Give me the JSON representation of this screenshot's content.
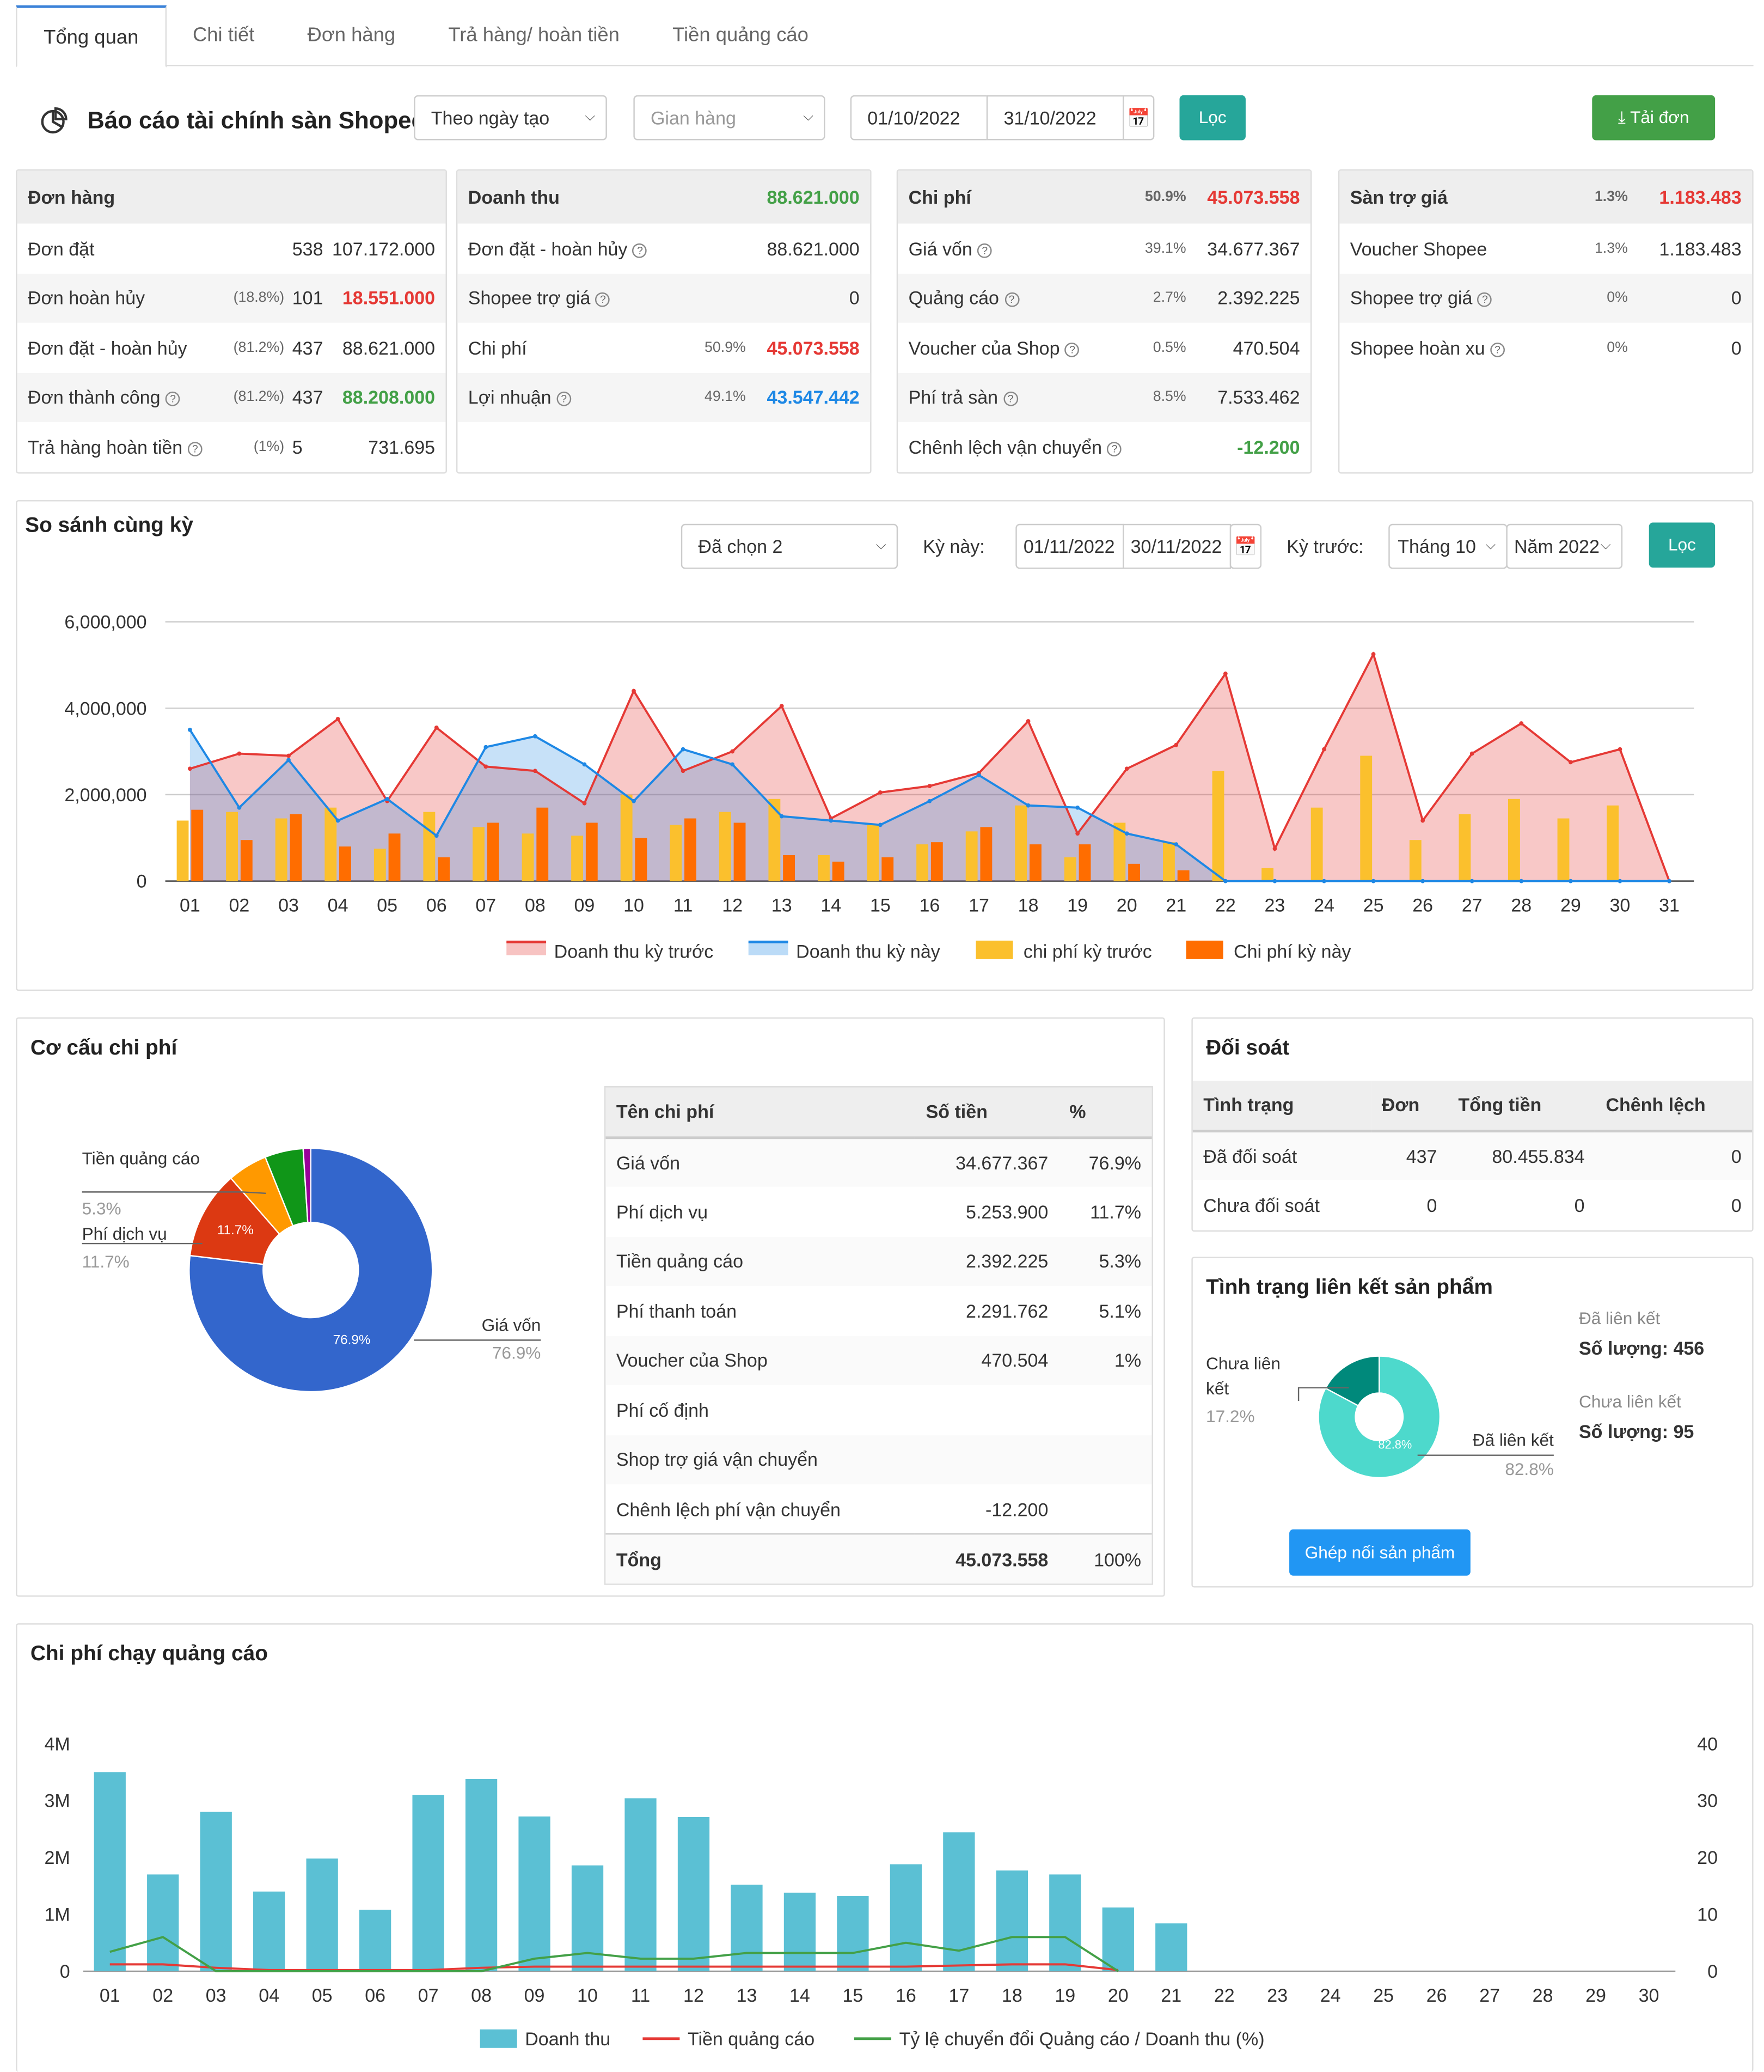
{
  "tabs": [
    "Tổng quan",
    "Chi tiết",
    "Đơn hàng",
    "Trả hàng/ hoàn tiền",
    "Tiền quảng cáo"
  ],
  "header": {
    "title": "Báo cáo tài chính sàn Shopee",
    "date_mode": "Theo ngày tạo",
    "shop_placeholder": "Gian hàng",
    "date_from": "01/10/2022",
    "date_to": "31/10/2022",
    "filter": "Lọc",
    "download": "Tải đơn"
  },
  "orders": {
    "title": "Đơn hàng",
    "rows": [
      {
        "label": "Đơn đặt",
        "pct": "",
        "count": "538",
        "value": "107.172.000",
        "color": ""
      },
      {
        "label": "Đơn hoàn hủy",
        "pct": "(18.8%)",
        "count": "101",
        "value": "18.551.000",
        "color": "red"
      },
      {
        "label": "Đơn đặt - hoàn hủy",
        "pct": "(81.2%)",
        "count": "437",
        "value": "88.621.000",
        "color": ""
      },
      {
        "label": "Đơn thành công",
        "pct": "(81.2%)",
        "count": "437",
        "value": "88.208.000",
        "color": "green",
        "help": true
      },
      {
        "label": "Trả hàng hoàn tiền",
        "pct": "(1%)",
        "count": "5",
        "value": "731.695",
        "color": "",
        "help": true
      }
    ]
  },
  "revenue": {
    "title": "Doanh thu",
    "value": "88.621.000",
    "rows": [
      {
        "label": "Đơn đặt - hoàn hủy",
        "pct": "",
        "value": "88.621.000",
        "color": "",
        "help": true
      },
      {
        "label": "Shopee trợ giá",
        "pct": "",
        "value": "0",
        "color": "",
        "help": true
      },
      {
        "label": "Chi phí",
        "pct": "50.9%",
        "value": "45.073.558",
        "color": "red"
      },
      {
        "label": "Lợi nhuận",
        "pct": "49.1%",
        "value": "43.547.442",
        "color": "blue",
        "help": true
      }
    ]
  },
  "cost": {
    "title": "Chi phí",
    "pct": "50.9%",
    "value": "45.073.558",
    "rows": [
      {
        "label": "Giá vốn",
        "pct": "39.1%",
        "value": "34.677.367",
        "color": "",
        "help": true
      },
      {
        "label": "Quảng cáo",
        "pct": "2.7%",
        "value": "2.392.225",
        "color": "",
        "help": true
      },
      {
        "label": "Voucher của Shop",
        "pct": "0.5%",
        "value": "470.504",
        "color": "",
        "help": true
      },
      {
        "label": "Phí trả sàn",
        "pct": "8.5%",
        "value": "7.533.462",
        "color": "",
        "help": true
      },
      {
        "label": "Chênh lệch vận chuyển",
        "pct": "",
        "value": "-12.200",
        "color": "green",
        "help": true
      }
    ]
  },
  "subsidy": {
    "title": "Sàn trợ giá",
    "pct": "1.3%",
    "value": "1.183.483",
    "rows": [
      {
        "label": "Voucher Shopee",
        "pct": "1.3%",
        "value": "1.183.483",
        "color": ""
      },
      {
        "label": "Shopee trợ giá",
        "pct": "0%",
        "value": "0",
        "color": "",
        "help": true
      },
      {
        "label": "Shopee hoàn xu",
        "pct": "0%",
        "value": "0",
        "color": "",
        "help": true
      }
    ]
  },
  "compare": {
    "title": "So sánh cùng kỳ",
    "selected": "Đã chọn 2",
    "this_label": "Kỳ này:",
    "this_from": "01/11/2022",
    "this_to": "30/11/2022",
    "prev_label": "Kỳ trước:",
    "month": "Tháng 10",
    "year": "Năm 2022",
    "filter": "Lọc"
  },
  "chart_data": [
    {
      "type": "line",
      "x": [
        "01",
        "02",
        "03",
        "04",
        "05",
        "06",
        "07",
        "08",
        "09",
        "10",
        "11",
        "12",
        "13",
        "14",
        "15",
        "16",
        "17",
        "18",
        "19",
        "20",
        "21",
        "22",
        "23",
        "24",
        "25",
        "26",
        "27",
        "28",
        "29",
        "30",
        "31"
      ],
      "y_ticks": [
        "6,000,000",
        "4,000,000",
        "2,000,000",
        "0"
      ],
      "ylim": [
        0,
        6000000
      ],
      "series": [
        {
          "name": "Doanh thu kỳ trước",
          "type": "area",
          "color": "#e53935",
          "values": [
            2600000,
            2950000,
            2900000,
            3750000,
            1850000,
            3550000,
            2650000,
            2550000,
            1800000,
            4400000,
            2550000,
            3000000,
            4050000,
            1450000,
            2050000,
            2200000,
            2500000,
            3700000,
            1100000,
            2600000,
            3150000,
            4800000,
            750000,
            3050000,
            5250000,
            1400000,
            2950000,
            3650000,
            2750000,
            3050000,
            0
          ]
        },
        {
          "name": "Doanh thu kỳ này",
          "type": "area",
          "color": "#1e88e5",
          "values": [
            3500000,
            1700000,
            2800000,
            1400000,
            1900000,
            1050000,
            3100000,
            3350000,
            2700000,
            1850000,
            3050000,
            2700000,
            1500000,
            1400000,
            1300000,
            1850000,
            2450000,
            1750000,
            1700000,
            1100000,
            850000,
            0,
            0,
            0,
            0,
            0,
            0,
            0,
            0,
            0,
            0
          ]
        },
        {
          "name": "chi phí kỳ trước",
          "type": "bar",
          "color": "#fbc02d",
          "values": [
            1400000,
            1600000,
            1450000,
            1700000,
            750000,
            1600000,
            1250000,
            1100000,
            1050000,
            2000000,
            1300000,
            1600000,
            1900000,
            600000,
            1300000,
            850000,
            1150000,
            1750000,
            550000,
            1350000,
            900000,
            2550000,
            300000,
            1700000,
            2900000,
            950000,
            1550000,
            1900000,
            1450000,
            1750000,
            0
          ]
        },
        {
          "name": "Chi phí kỳ này",
          "type": "bar",
          "color": "#ff6d00",
          "values": [
            1650000,
            950000,
            1550000,
            800000,
            1100000,
            550000,
            1350000,
            1700000,
            1350000,
            1000000,
            1450000,
            1350000,
            600000,
            450000,
            550000,
            900000,
            1250000,
            850000,
            850000,
            400000,
            250000,
            0,
            0,
            0,
            0,
            0,
            0,
            0,
            0,
            0,
            0
          ]
        }
      ]
    },
    {
      "type": "pie",
      "title": "Cơ cấu chi phí",
      "slices": [
        {
          "label": "Giá vốn",
          "value": 76.9,
          "color": "#3366cc"
        },
        {
          "label": "Phí dịch vụ",
          "value": 11.7,
          "color": "#dc3912"
        },
        {
          "label": "Tiền quảng cáo",
          "value": 5.3,
          "color": "#ff9900"
        },
        {
          "label": "Phí thanh toán",
          "value": 5.1,
          "color": "#109618"
        },
        {
          "label": "Voucher của Shop",
          "value": 1.0,
          "color": "#990099"
        }
      ]
    },
    {
      "type": "pie",
      "title": "Tình trạng liên kết sản phẩm",
      "slices": [
        {
          "label": "Đã liên kết",
          "value": 82.8,
          "color": "#4dd9cc"
        },
        {
          "label": "Chưa liên kết",
          "value": 17.2,
          "color": "#00897b"
        }
      ]
    },
    {
      "type": "bar",
      "title": "Chi phí chạy quảng cáo",
      "x": [
        "01",
        "02",
        "03",
        "04",
        "05",
        "06",
        "07",
        "08",
        "09",
        "10",
        "11",
        "12",
        "13",
        "14",
        "15",
        "16",
        "17",
        "18",
        "19",
        "20",
        "21",
        "22",
        "23",
        "24",
        "25",
        "26",
        "27",
        "28",
        "29",
        "30"
      ],
      "y_left": [
        "4M",
        "3M",
        "2M",
        "1M",
        "0"
      ],
      "y_right": [
        "40",
        "30",
        "20",
        "10",
        "0"
      ],
      "ylim_left": [
        0,
        4000000
      ],
      "ylim_right": [
        0,
        40
      ],
      "series": [
        {
          "name": "Doanh thu",
          "type": "bar",
          "color": "#5bc0d4",
          "values": [
            3500000,
            1700000,
            2800000,
            1400000,
            1980000,
            1080000,
            3100000,
            3380000,
            2720000,
            1860000,
            3040000,
            2710000,
            1520000,
            1380000,
            1320000,
            1880000,
            2440000,
            1770000,
            1700000,
            1120000,
            840000,
            0,
            0,
            0,
            0,
            0,
            0,
            0,
            0,
            0
          ]
        },
        {
          "name": "Tiền quảng cáo",
          "type": "line",
          "color": "#e53935",
          "values": [
            120000,
            120000,
            60000,
            20000,
            20000,
            20000,
            20000,
            60000,
            80000,
            80000,
            80000,
            80000,
            80000,
            80000,
            80000,
            80000,
            100000,
            120000,
            120000,
            20000,
            0,
            0,
            0,
            0,
            0,
            0,
            0,
            0,
            0,
            0
          ]
        },
        {
          "name": "Tỷ lệ chuyển đổi Quảng cáo / Doanh thu (%)",
          "type": "line",
          "axis": "right",
          "color": "#43a047",
          "values": [
            3.4,
            6,
            0,
            0,
            0,
            0,
            0,
            0,
            2.2,
            3.2,
            2.2,
            2.2,
            3.2,
            3.2,
            3.2,
            5,
            3.6,
            6,
            6,
            0,
            0,
            0,
            0,
            0,
            0,
            0,
            0,
            0,
            0,
            0
          ]
        }
      ]
    }
  ],
  "cost_table": {
    "head": [
      "Tên chi phí",
      "Số tiền",
      "%"
    ],
    "rows": [
      [
        "Giá vốn",
        "34.677.367",
        "76.9%"
      ],
      [
        "Phí dịch vụ",
        "5.253.900",
        "11.7%"
      ],
      [
        "Tiền quảng cáo",
        "2.392.225",
        "5.3%"
      ],
      [
        "Phí thanh toán",
        "2.291.762",
        "5.1%"
      ],
      [
        "Voucher của Shop",
        "470.504",
        "1%"
      ],
      [
        "Phí cố định",
        "",
        ""
      ],
      [
        "Shop trợ giá vận chuyển",
        "",
        ""
      ],
      [
        "Chênh lệch phí vận chuyển",
        "-12.200",
        ""
      ]
    ],
    "total": [
      "Tổng",
      "45.073.558",
      "100%"
    ]
  },
  "pie1_labels": {
    "ads": "Tiền quảng cáo",
    "ads_pct": "5.3%",
    "svc": "Phí dịch vụ",
    "svc_pct": "11.7%",
    "cogs": "Giá vốn",
    "cogs_pct": "76.9%",
    "in_svc": "11.7%",
    "in_cogs": "76.9%"
  },
  "recon": {
    "title": "Đối soát",
    "head": [
      "Tình trạng",
      "Đơn",
      "Tổng tiền",
      "Chênh lệch"
    ],
    "rows": [
      [
        "Đã đối soát",
        "437",
        "80.455.834",
        "0"
      ],
      [
        "Chưa đối soát",
        "0",
        "0",
        "0"
      ]
    ]
  },
  "link": {
    "title": "Tình trạng liên kết sản phẩm",
    "linked": "Đã liên kết",
    "linked_qty": "Số lượng: 456",
    "unlinked": "Chưa liên kết",
    "unlinked_qty": "Số lượng: 95",
    "lbl_unlinked": "Chưa liên kết",
    "pct_unlinked": "17.2%",
    "lbl_linked": "Đã liên kết",
    "pct_linked": "82.8%",
    "inner": "82.8%",
    "button": "Ghép nối sản phẩm"
  },
  "ads": {
    "title": "Chi phí chạy quảng cáo"
  }
}
